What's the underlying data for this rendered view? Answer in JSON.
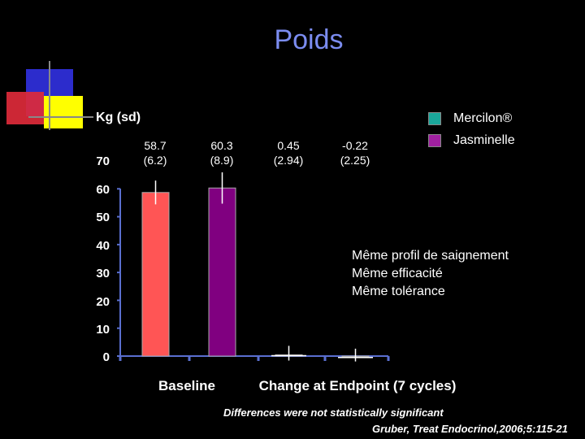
{
  "title": "Poids",
  "colors": {
    "title": "#7b8cf0",
    "mercilon": "#ff5555",
    "jasminelle": "#800080",
    "mercilon_legend": "#1aa69a",
    "jasminelle_legend": "#a020a0",
    "axis": "#5a6fd0",
    "deco_blue": "#2c2ccc",
    "deco_yellow": "#ffff00",
    "deco_red": "#dd2a3a"
  },
  "chart_data": {
    "type": "bar",
    "ylabel": "Kg (sd)",
    "ylim": [
      0,
      70
    ],
    "yticks": [
      "0",
      "10",
      "20",
      "30",
      "40",
      "50",
      "60",
      "70"
    ],
    "categories": [
      "Baseline",
      "Change at Endpoint (7 cycles)"
    ],
    "series": [
      {
        "name": "Mercilon®",
        "values": [
          58.7,
          0.45
        ],
        "labels": [
          "58.7\n(6.2)",
          "0.45\n(2.94)"
        ],
        "sd": [
          6.2,
          2.94
        ]
      },
      {
        "name": "Jasminelle",
        "values": [
          60.3,
          -0.22
        ],
        "labels": [
          "60.3\n(8.9)",
          "-0.22\n(2.25)"
        ],
        "sd": [
          8.9,
          2.25
        ]
      }
    ],
    "legend": "top-right",
    "grid": false
  },
  "notes": [
    "Même profil de saignement",
    "Même efficacité",
    "Même tolérance"
  ],
  "footnotes": {
    "significance": "Differences were not statistically significant",
    "reference": "Gruber, Treat Endocrinol,2006;5:115-21"
  }
}
